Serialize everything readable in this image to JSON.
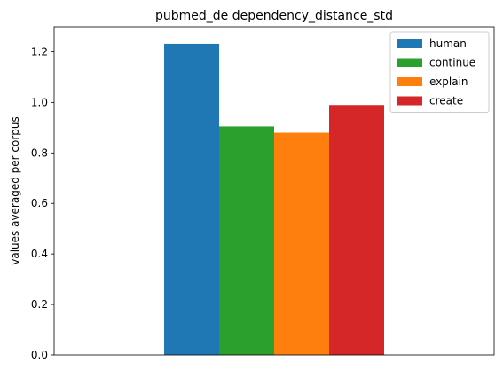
{
  "chart_data": {
    "type": "bar",
    "title": "pubmed_de dependency_distance_std",
    "xlabel": "",
    "ylabel": "values averaged per corpus",
    "categories": [
      ""
    ],
    "series": [
      {
        "name": "human",
        "values": [
          1.23
        ],
        "color": "#1f77b4"
      },
      {
        "name": "continue",
        "values": [
          0.905
        ],
        "color": "#2ca02c"
      },
      {
        "name": "explain",
        "values": [
          0.88
        ],
        "color": "#ff7f0e"
      },
      {
        "name": "create",
        "values": [
          0.99
        ],
        "color": "#d62728"
      }
    ],
    "ylim": [
      0,
      1.3
    ],
    "yticks": [
      0.0,
      0.2,
      0.4,
      0.6,
      0.8,
      1.0,
      1.2
    ],
    "ytick_labels": [
      "0.0",
      "0.2",
      "0.4",
      "0.6",
      "0.8",
      "1.0",
      "1.2"
    ],
    "grid": false,
    "legend_position": "top-right"
  }
}
